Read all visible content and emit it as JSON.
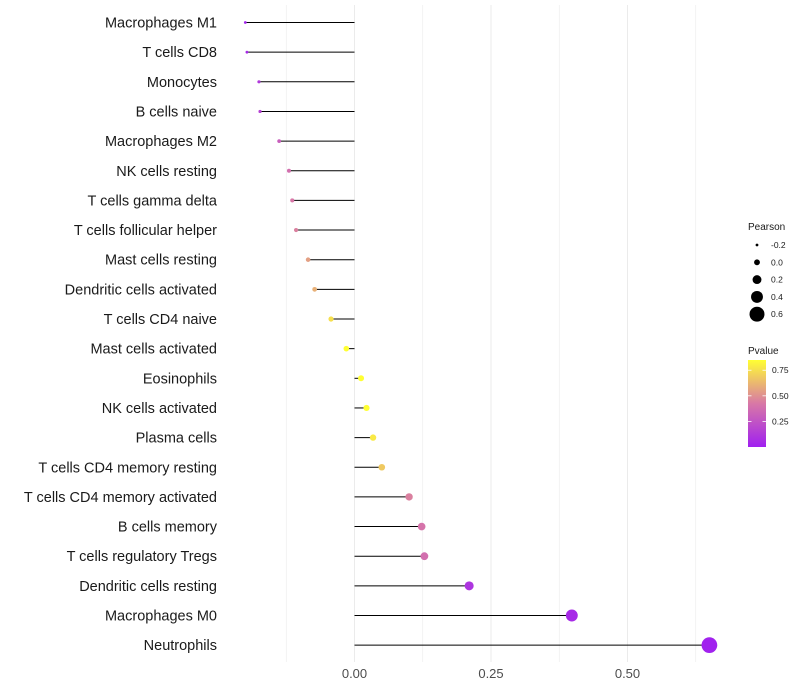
{
  "chart_data": {
    "type": "lollipop",
    "orientation": "horizontal",
    "baseline": 0,
    "categories": [
      "Macrophages M1",
      "T cells CD8",
      "Monocytes",
      "B cells naive",
      "Macrophages M2",
      "NK cells resting",
      "T cells gamma delta",
      "T cells follicular helper",
      "Mast cells resting",
      "Dendritic cells activated",
      "T cells CD4 naive",
      "Mast cells activated",
      "Eosinophils",
      "NK cells activated",
      "Plasma cells",
      "T cells CD4 memory resting",
      "T cells CD4 memory activated",
      "B cells memory",
      "T cells regulatory  Tregs ",
      "Dendritic cells resting",
      "Macrophages M0",
      "Neutrophils"
    ],
    "pearson": [
      -0.2,
      -0.197,
      -0.175,
      -0.173,
      -0.138,
      -0.12,
      -0.114,
      -0.107,
      -0.085,
      -0.073,
      -0.043,
      -0.015,
      0.012,
      0.022,
      0.034,
      0.05,
      0.1,
      0.123,
      0.128,
      0.21,
      0.398,
      0.65
    ],
    "pvalue": [
      0.02,
      0.05,
      0.12,
      0.16,
      0.3,
      0.38,
      0.42,
      0.45,
      0.55,
      0.6,
      0.75,
      0.92,
      0.96,
      0.88,
      0.78,
      0.68,
      0.45,
      0.4,
      0.38,
      0.1,
      0.05,
      0.01
    ],
    "x_ticks": [
      0.0,
      0.25,
      0.5
    ],
    "x_tick_labels": [
      "0.00",
      "0.25",
      "0.50"
    ],
    "xlim": [
      -0.225,
      0.7
    ],
    "legend": {
      "size_title": "Pearson",
      "size_values": [
        -0.2,
        0.0,
        0.2,
        0.4,
        0.6
      ],
      "size_labels": [
        "-0.2",
        "0.0",
        "0.2",
        "0.4",
        "0.6"
      ],
      "color_title": "Pvalue",
      "color_ticks": [
        0.25,
        0.5,
        0.75
      ],
      "color_labels": [
        "0.25",
        "0.50",
        "0.75"
      ],
      "color_range": [
        0.0,
        0.85
      ],
      "color_low": "#a020f0",
      "color_mid": "#d878a6",
      "color_high": "#ffff33",
      "placement": "right"
    }
  }
}
